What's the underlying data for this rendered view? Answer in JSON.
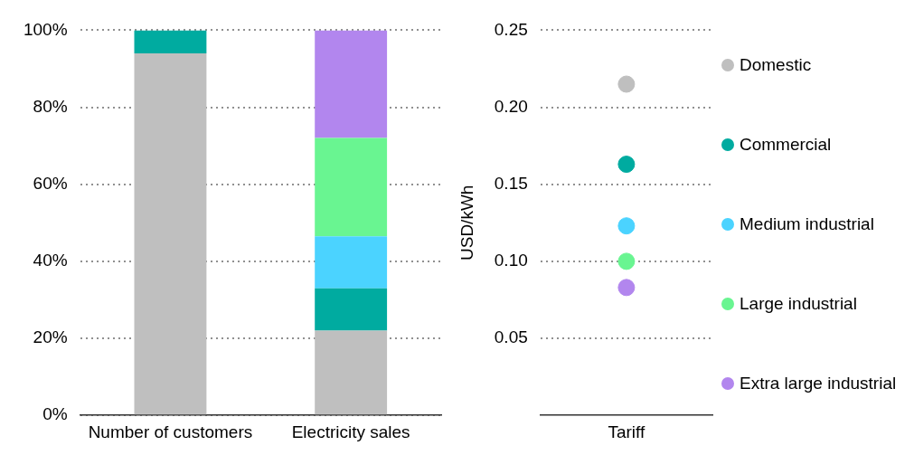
{
  "chart_data": [
    {
      "type": "bar",
      "stacked": true,
      "categories": [
        "Number of customers",
        "Electricity sales"
      ],
      "ylim": [
        0,
        100
      ],
      "yticks": [
        {
          "value": 0,
          "label": "0%"
        },
        {
          "value": 20,
          "label": "20%"
        },
        {
          "value": 40,
          "label": "40%"
        },
        {
          "value": 60,
          "label": "60%"
        },
        {
          "value": 80,
          "label": "80%"
        },
        {
          "value": 100,
          "label": "100%"
        }
      ],
      "grid": "y",
      "legend": false,
      "series": [
        {
          "color": "#bfbfbf",
          "values": [
            94,
            22
          ]
        },
        {
          "color": "#00aba0",
          "values": [
            6,
            11
          ]
        },
        {
          "color": "#4bd3ff",
          "values": [
            null,
            13.5
          ]
        },
        {
          "color": "#69f591",
          "values": [
            null,
            25.5
          ]
        },
        {
          "color": "#b286ee",
          "values": [
            null,
            28
          ]
        }
      ]
    },
    {
      "type": "scatter",
      "categories": [
        "Tariff"
      ],
      "ylabel": "USD/kWh",
      "ylim": [
        0,
        0.25
      ],
      "yticks": [
        {
          "value": 0.05,
          "label": "0.05"
        },
        {
          "value": 0.1,
          "label": "0.10"
        },
        {
          "value": 0.15,
          "label": "0.15"
        },
        {
          "value": 0.2,
          "label": "0.20"
        },
        {
          "value": 0.25,
          "label": "0.25"
        }
      ],
      "grid": "y",
      "legend": "right",
      "marker": "circle",
      "series": [
        {
          "name": "Domestic",
          "color": "#bfbfbf",
          "values": [
            0.215
          ]
        },
        {
          "name": "Commercial",
          "color": "#00aba0",
          "values": [
            0.163
          ]
        },
        {
          "name": "Medium industrial",
          "color": "#4bd3ff",
          "values": [
            0.123
          ]
        },
        {
          "name": "Large industrial",
          "color": "#69f591",
          "values": [
            0.1
          ]
        },
        {
          "name": "Extra large industrial",
          "color": "#b286ee",
          "values": [
            0.083
          ]
        }
      ]
    }
  ]
}
